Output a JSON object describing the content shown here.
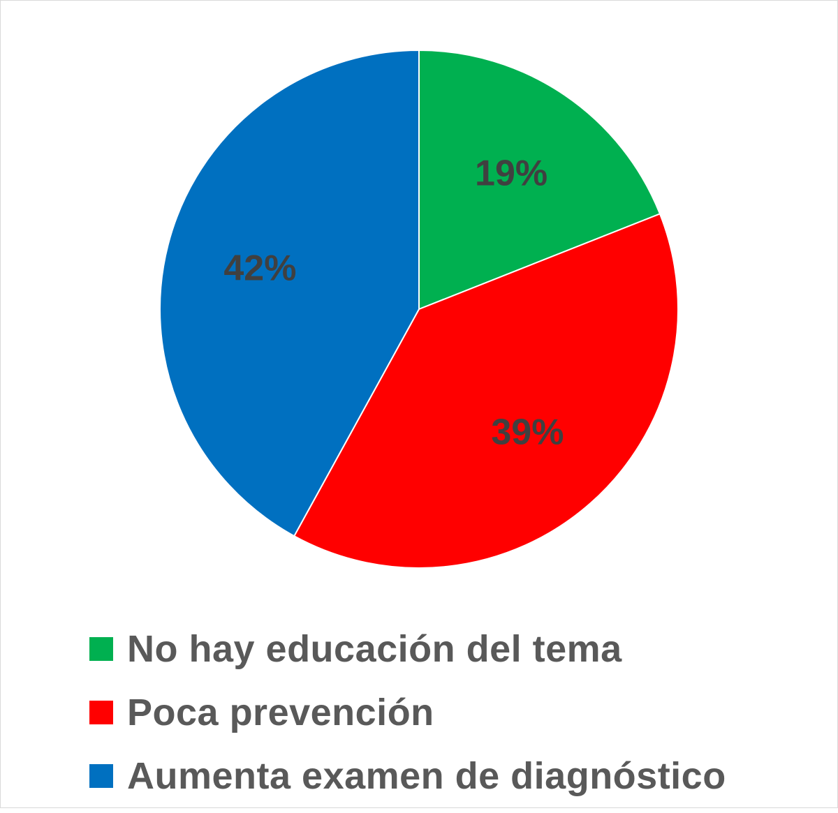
{
  "chart_data": {
    "type": "pie",
    "start_angle_deg": 0,
    "direction": "clockwise",
    "slices": [
      {
        "name": "No hay educación del tema",
        "value": 19,
        "label": "19%",
        "color": "#00B050"
      },
      {
        "name": "Poca prevención",
        "value": 39,
        "label": "39%",
        "color": "#FF0000"
      },
      {
        "name": "Aumenta examen de diagnóstico",
        "value": 42,
        "label": "42%",
        "color": "#0070C0"
      }
    ],
    "legend_position": "bottom",
    "label_color": "#404040",
    "legend_text_color": "#595959"
  }
}
